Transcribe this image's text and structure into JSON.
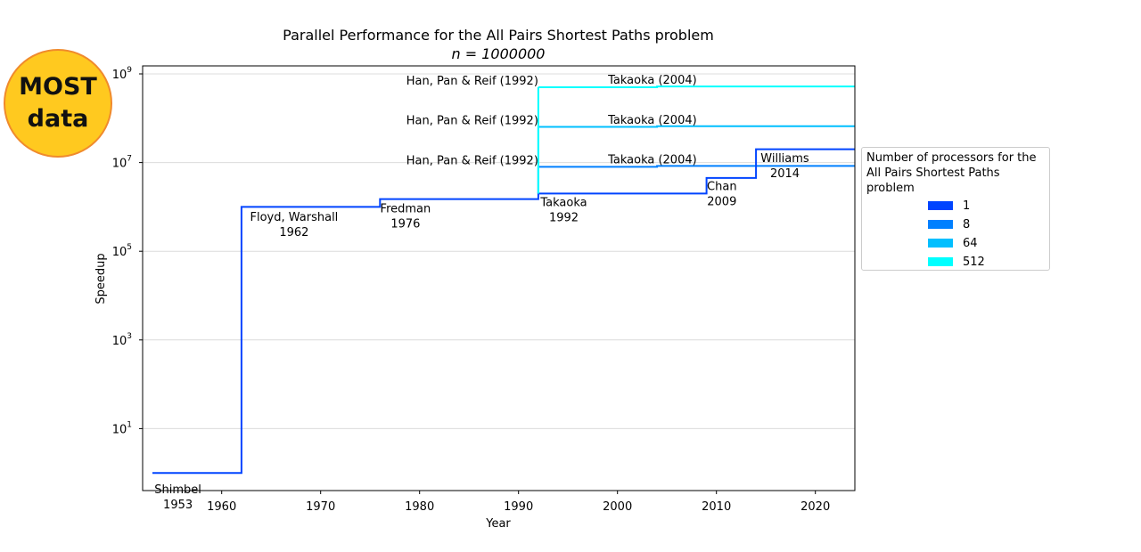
{
  "badge": {
    "line1": "MOST",
    "line2": "data"
  },
  "chart_data": {
    "type": "line",
    "step": "post",
    "title": "Parallel Performance for the All Pairs Shortest Paths problem",
    "subtitle": "n = 1000000",
    "xlabel": "Year",
    "ylabel": "Speedup",
    "xlim": [
      1953,
      2025
    ],
    "ylim_log10": [
      -0.4,
      9.2
    ],
    "yscale": "log",
    "grid": "horizontal",
    "x_ticks": [
      1960,
      1970,
      1980,
      1990,
      2000,
      2010,
      2020
    ],
    "y_ticks": [
      {
        "base": "10",
        "exp": "1",
        "log": 1
      },
      {
        "base": "10",
        "exp": "3",
        "log": 3
      },
      {
        "base": "10",
        "exp": "5",
        "log": 5
      },
      {
        "base": "10",
        "exp": "7",
        "log": 7
      },
      {
        "base": "10",
        "exp": "9",
        "log": 9
      }
    ],
    "legend_position": "right",
    "legend_title": "Number of processors for the All Pairs Shortest Paths problem",
    "series": [
      {
        "name": "1",
        "color": "#0044FF",
        "points": [
          [
            1953,
            1
          ],
          [
            1962,
            1000000
          ],
          [
            1976,
            1500000
          ],
          [
            1992,
            2000000
          ],
          [
            2009,
            4500000
          ],
          [
            2014,
            20000000
          ],
          [
            2025,
            20000000
          ]
        ]
      },
      {
        "name": "8",
        "color": "#0080FF",
        "points": [
          [
            1992,
            8000000
          ],
          [
            2004,
            8400000
          ],
          [
            2025,
            8400000
          ]
        ]
      },
      {
        "name": "64",
        "color": "#00BFFF",
        "points": [
          [
            1992,
            64000000
          ],
          [
            2004,
            66000000
          ],
          [
            2025,
            66000000
          ]
        ]
      },
      {
        "name": "512",
        "color": "#00FFFF",
        "points": [
          [
            1992,
            500000000
          ],
          [
            2004,
            520000000
          ],
          [
            2025,
            520000000
          ]
        ]
      }
    ],
    "annotations": [
      {
        "x": 1953,
        "y": 0.5,
        "lines": [
          "Shimbel",
          "1953"
        ]
      },
      {
        "x": 1962,
        "y": 700000,
        "lines": [
          "Floyd, Warshall",
          "1962"
        ]
      },
      {
        "x": 1976,
        "y": 1100000,
        "lines": [
          "Fredman",
          "1976"
        ]
      },
      {
        "x": 1992,
        "y": 1500000,
        "lines": [
          "Takaoka",
          "1992"
        ]
      },
      {
        "x": 2009,
        "y": 3500000,
        "lines": [
          "Chan",
          "2009"
        ]
      },
      {
        "x": 2014,
        "y": 15000000,
        "lines": [
          "Williams",
          "2014"
        ]
      },
      {
        "x": 1992,
        "y": 500000000,
        "lines": [
          "Han, Pan & Reif (1992)"
        ]
      },
      {
        "x": 1992,
        "y": 64000000,
        "lines": [
          "Han, Pan & Reif (1992)"
        ]
      },
      {
        "x": 1992,
        "y": 8000000,
        "lines": [
          "Han, Pan & Reif (1992)"
        ]
      },
      {
        "x": 2004,
        "y": 520000000,
        "lines": [
          "Takaoka (2004)"
        ]
      },
      {
        "x": 2004,
        "y": 66000000,
        "lines": [
          "Takaoka (2004)"
        ]
      },
      {
        "x": 2004,
        "y": 8400000,
        "lines": [
          "Takaoka (2004)"
        ]
      }
    ]
  }
}
